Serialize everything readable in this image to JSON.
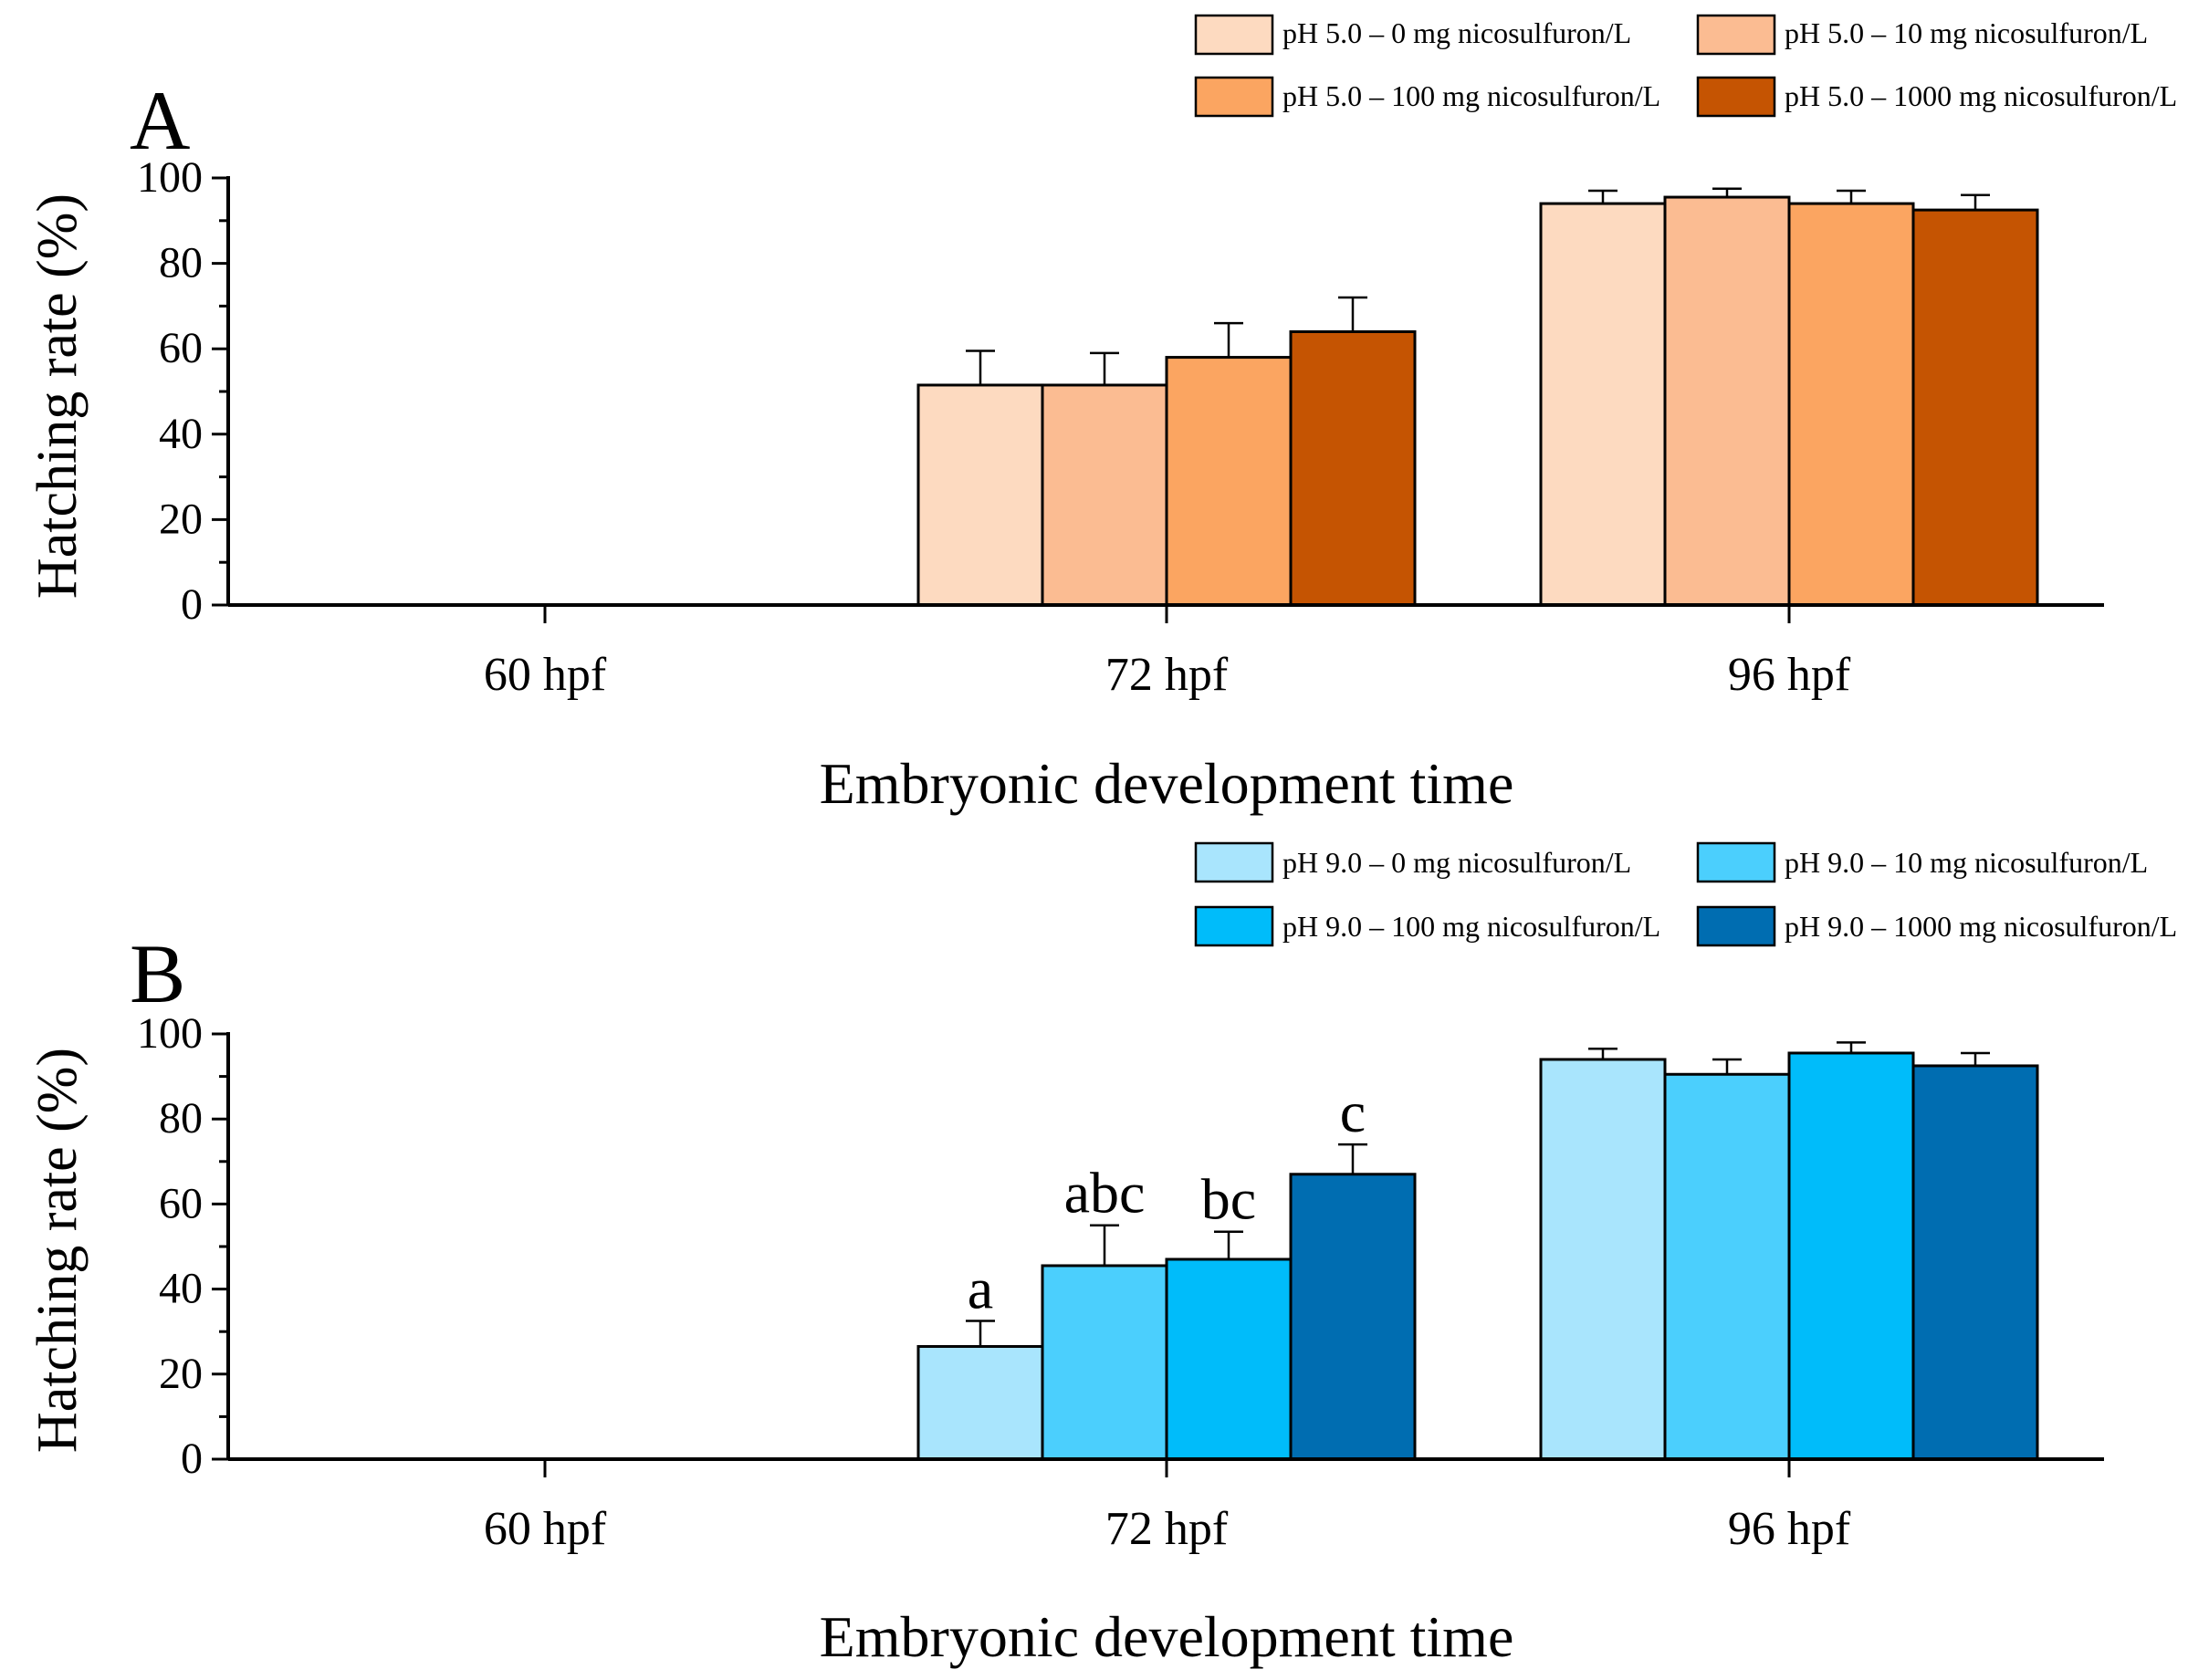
{
  "chart_data": [
    {
      "panel_label": "A",
      "type": "bar",
      "categories": [
        "60 hpf",
        "72 hpf",
        "96 hpf"
      ],
      "xlabel": "Embryonic development time",
      "ylabel": "Hatching rate (%)",
      "ylim": [
        0,
        100
      ],
      "yticks": [
        0,
        20,
        40,
        60,
        80,
        100
      ],
      "legend_position": "top-right",
      "series": [
        {
          "name": "pH 5.0 – 0 mg nicosulfuron/L",
          "color": "#FDDAC0",
          "values": [
            0,
            51.5,
            94
          ],
          "errors": [
            0,
            8,
            3
          ]
        },
        {
          "name": "pH 5.0 – 10 mg nicosulfuron/L",
          "color": "#FBBC92",
          "values": [
            0,
            51.5,
            95.5
          ],
          "errors": [
            0,
            7.5,
            2
          ]
        },
        {
          "name": "pH 5.0 – 100 mg nicosulfuron/L",
          "color": "#FBA561",
          "values": [
            0,
            58,
            94
          ],
          "errors": [
            0,
            8,
            3
          ]
        },
        {
          "name": "pH 5.0 – 1000 mg nicosulfuron/L",
          "color": "#C55402",
          "values": [
            0,
            64,
            92.5
          ],
          "errors": [
            0,
            8,
            3.5
          ]
        }
      ],
      "annotations": []
    },
    {
      "panel_label": "B",
      "type": "bar",
      "categories": [
        "60 hpf",
        "72 hpf",
        "96 hpf"
      ],
      "xlabel": "Embryonic development time",
      "ylabel": "Hatching rate (%)",
      "ylim": [
        0,
        100
      ],
      "yticks": [
        0,
        20,
        40,
        60,
        80,
        100
      ],
      "legend_position": "top-right",
      "series": [
        {
          "name": "pH 9.0 – 0 mg nicosulfuron/L",
          "color": "#A9E5FD",
          "values": [
            0,
            26.5,
            94
          ],
          "errors": [
            0,
            6,
            2.5
          ]
        },
        {
          "name": "pH 9.0 – 10 mg nicosulfuron/L",
          "color": "#4BCFFD",
          "values": [
            0,
            45.5,
            90.5
          ],
          "errors": [
            0,
            9.5,
            3.5
          ]
        },
        {
          "name": "pH 9.0 – 100 mg nicosulfuron/L",
          "color": "#00BCFA",
          "values": [
            0,
            47,
            95.5
          ],
          "errors": [
            0,
            6.5,
            2.5
          ]
        },
        {
          "name": "pH 9.0 – 1000 mg nicosulfuron/L",
          "color": "#006DB1",
          "values": [
            0,
            67,
            92.5
          ],
          "errors": [
            0,
            7,
            3
          ]
        }
      ],
      "annotations": [
        {
          "category": 1,
          "series": 0,
          "text": "a"
        },
        {
          "category": 1,
          "series": 1,
          "text": "abc"
        },
        {
          "category": 1,
          "series": 2,
          "text": "bc"
        },
        {
          "category": 1,
          "series": 3,
          "text": "c"
        }
      ]
    }
  ]
}
